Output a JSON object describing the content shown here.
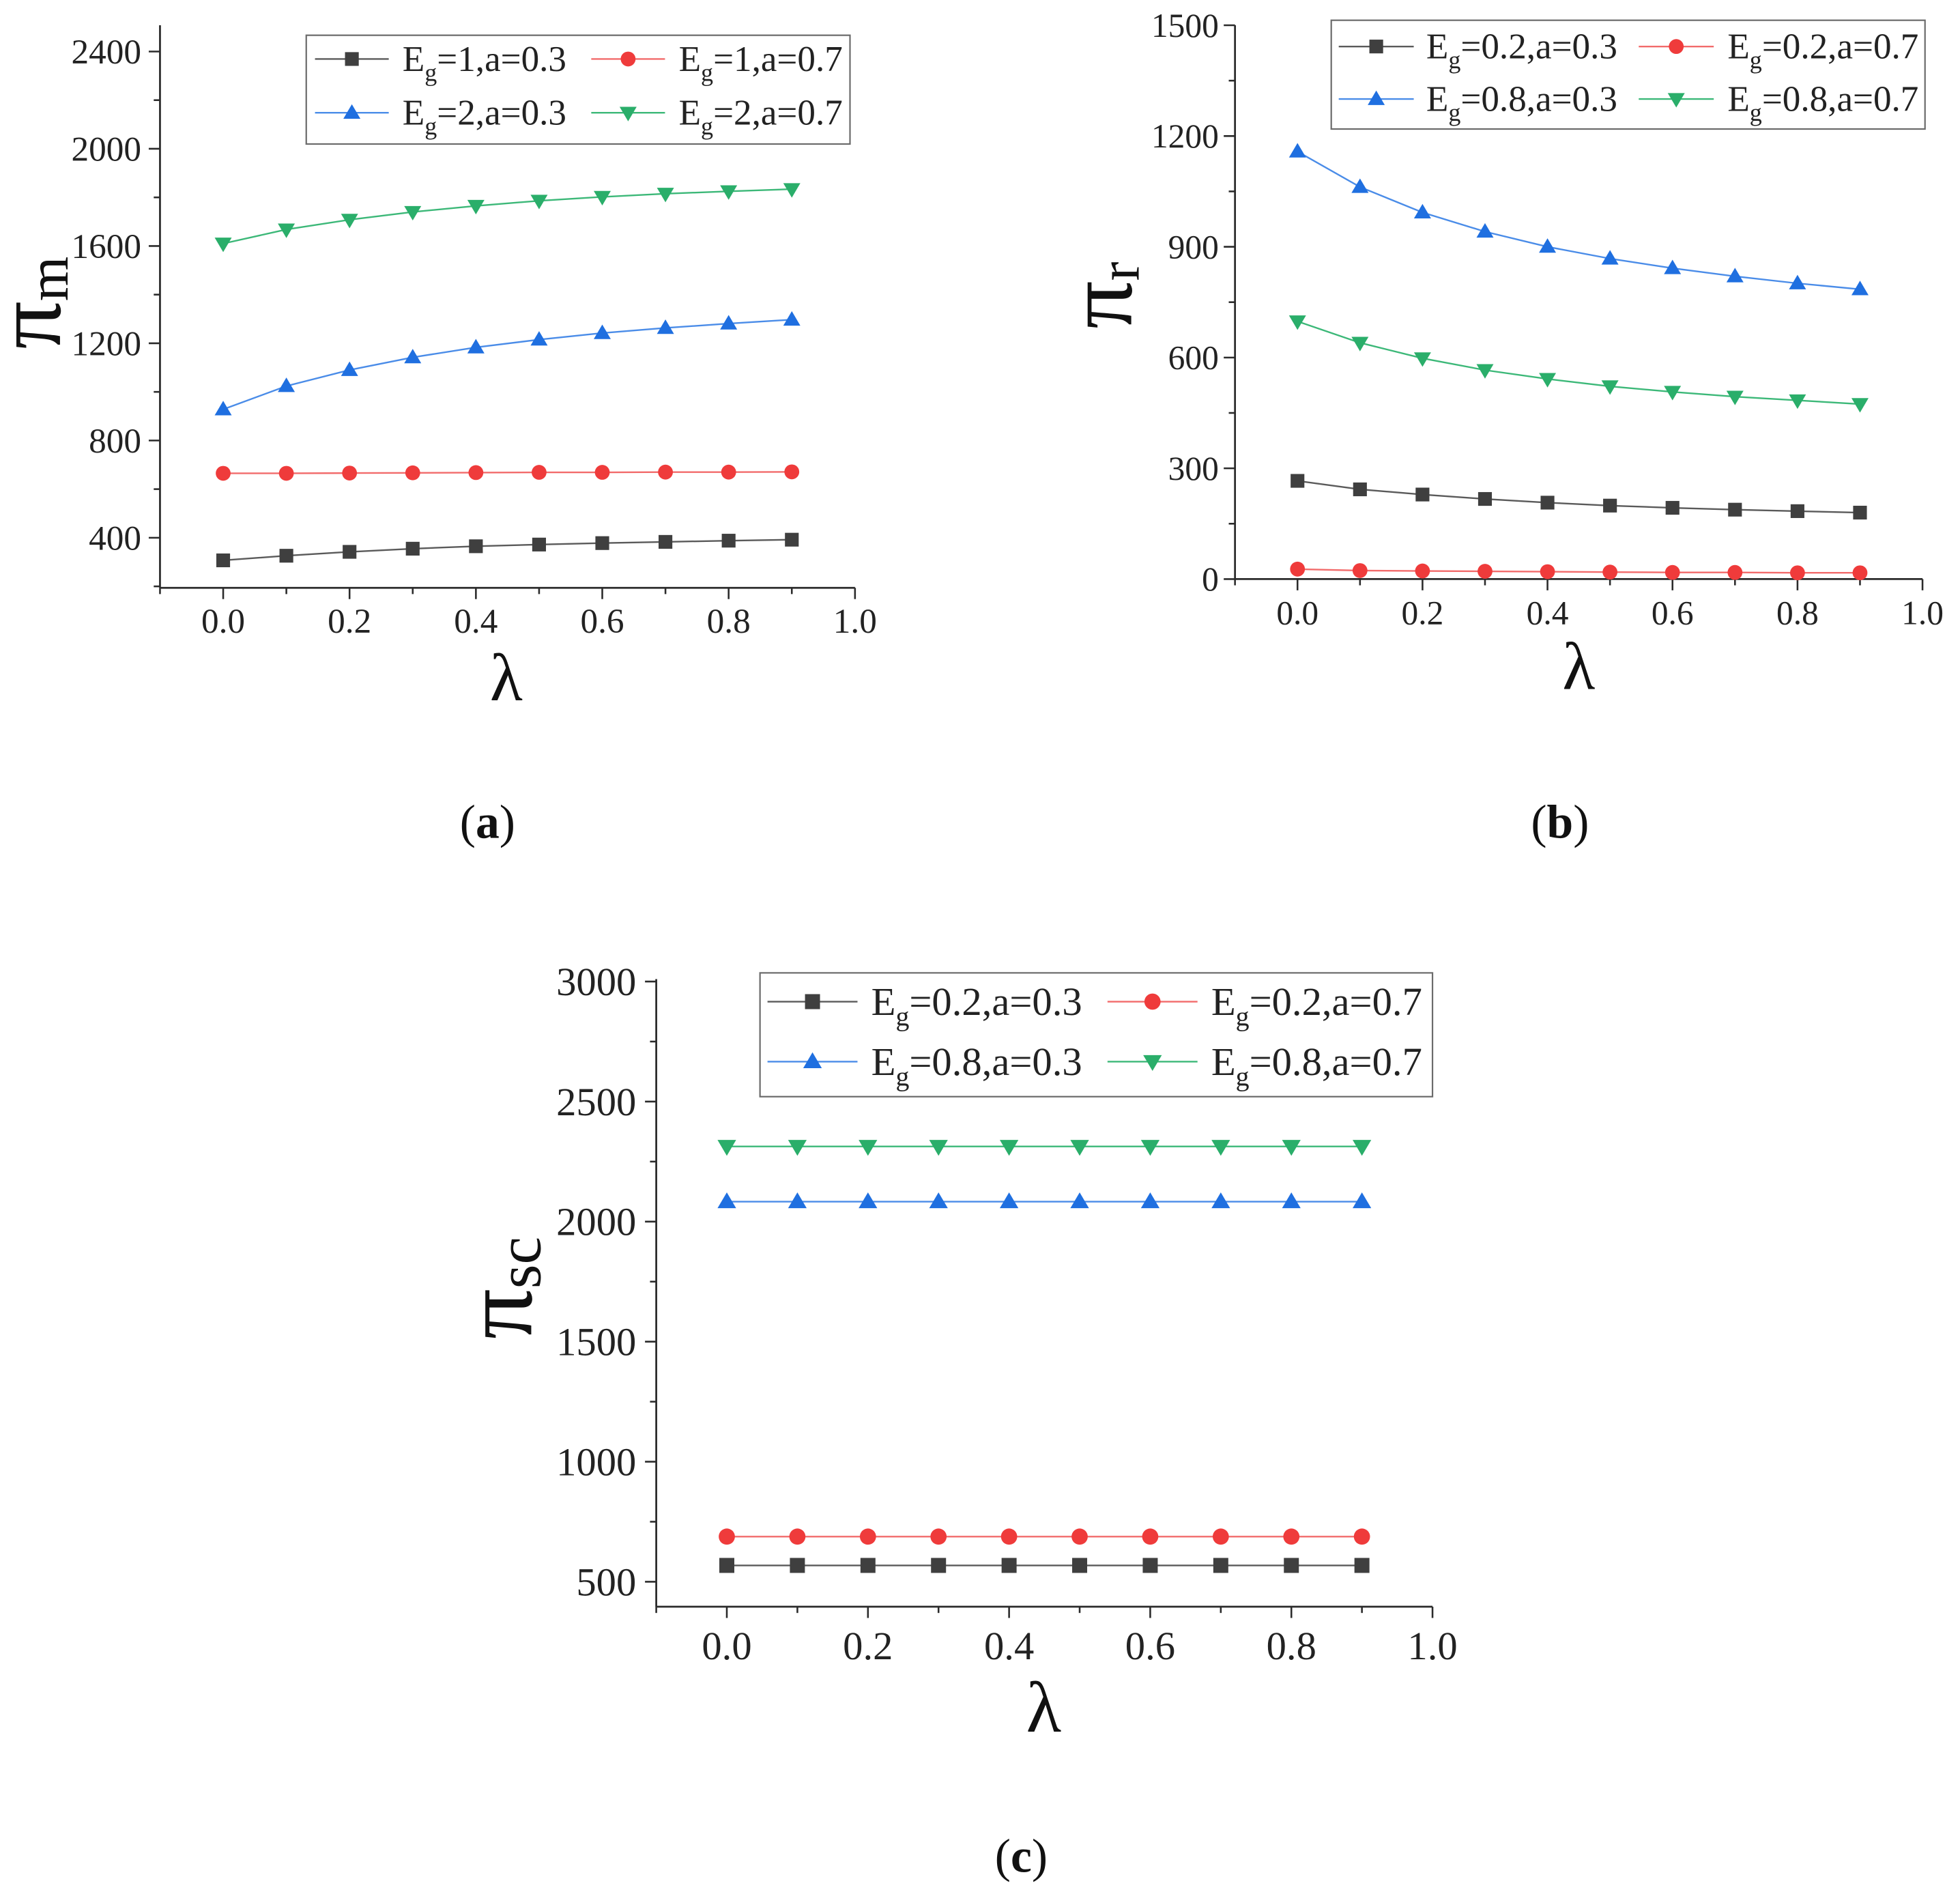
{
  "chart_data": [
    {
      "type": "line",
      "panel_label": {
        "open": "(",
        "letter": "a",
        "close": ")"
      },
      "xlabel": "λ",
      "ylabel": {
        "base": "π",
        "sub": "m"
      },
      "x": [
        0,
        0.1,
        0.2,
        0.3,
        0.4,
        0.5,
        0.6,
        0.7,
        0.8,
        0.9
      ],
      "xlim": [
        -0.1,
        1.0
      ],
      "ylim": [
        194,
        2508
      ],
      "xtick_values": [
        0,
        0.2,
        0.4,
        0.6,
        0.8,
        1.0
      ],
      "xtick_labels": [
        "0.0",
        "0.2",
        "0.4",
        "0.6",
        "0.8",
        "1.0"
      ],
      "ytick_values": [
        400,
        800,
        1200,
        1600,
        2000,
        2400
      ],
      "ytick_labels": [
        "400",
        "800",
        "1200",
        "1600",
        "2000",
        "2400"
      ],
      "legend": "top-right",
      "series": [
        {
          "name": {
            "base": "E",
            "sub": "g",
            "tail": "=1,a=0.3"
          },
          "color": "#3f3f3f",
          "line_color": "#5a5a5a",
          "marker": "square",
          "values": [
            307,
            326,
            342,
            355,
            365,
            372,
            378,
            383,
            388,
            392
          ]
        },
        {
          "name": {
            "base": "E",
            "sub": "g",
            "tail": "=1,a=0.7"
          },
          "color": "#ef3b3b",
          "line_color": "#f26b6b",
          "marker": "circle",
          "values": [
            665,
            665,
            666,
            667,
            668,
            669,
            669,
            670,
            670,
            671
          ]
        },
        {
          "name": {
            "base": "E",
            "sub": "g",
            "tail": "=2,a=0.3"
          },
          "color": "#1f6fe0",
          "line_color": "#4a8ce8",
          "marker": "triangle-up",
          "values": [
            928,
            1024,
            1090,
            1142,
            1183,
            1215,
            1242,
            1263,
            1281,
            1297
          ]
        },
        {
          "name": {
            "base": "E",
            "sub": "g",
            "tail": "=2,a=0.7"
          },
          "color": "#2aae6a",
          "line_color": "#3cb878",
          "marker": "triangle-down",
          "values": [
            1610,
            1668,
            1708,
            1740,
            1765,
            1786,
            1802,
            1815,
            1825,
            1834
          ]
        }
      ]
    },
    {
      "type": "line",
      "panel_label": {
        "open": "(",
        "letter": "b",
        "close": ")"
      },
      "xlabel": "λ",
      "ylabel": {
        "base": "π",
        "sub": "r"
      },
      "x": [
        0,
        0.1,
        0.2,
        0.3,
        0.4,
        0.5,
        0.6,
        0.7,
        0.8,
        0.9
      ],
      "xlim": [
        -0.1,
        1.0
      ],
      "ylim": [
        0,
        1500
      ],
      "xtick_values": [
        0,
        0.2,
        0.4,
        0.6,
        0.8,
        1.0
      ],
      "xtick_labels": [
        "0.0",
        "0.2",
        "0.4",
        "0.6",
        "0.8",
        "1.0"
      ],
      "ytick_values": [
        0,
        300,
        600,
        900,
        1200,
        1500
      ],
      "ytick_labels": [
        "0",
        "300",
        "600",
        "900",
        "1200",
        "1500"
      ],
      "legend": "top-right",
      "series": [
        {
          "name": {
            "base": "E",
            "sub": "g",
            "tail": "=0.2,a=0.3"
          },
          "color": "#3f3f3f",
          "line_color": "#5a5a5a",
          "marker": "square",
          "values": [
            266,
            243,
            229,
            217,
            207,
            199,
            193,
            188,
            184,
            180
          ]
        },
        {
          "name": {
            "base": "E",
            "sub": "g",
            "tail": "=0.2,a=0.7"
          },
          "color": "#ef3b3b",
          "line_color": "#f26b6b",
          "marker": "circle",
          "values": [
            27,
            23,
            22,
            21,
            20,
            19,
            18,
            18,
            17,
            17
          ]
        },
        {
          "name": {
            "base": "E",
            "sub": "g",
            "tail": "=0.8,a=0.3"
          },
          "color": "#1f6fe0",
          "line_color": "#4a8ce8",
          "marker": "triangle-up",
          "values": [
            1158,
            1062,
            993,
            941,
            900,
            868,
            842,
            820,
            801,
            785
          ]
        },
        {
          "name": {
            "base": "E",
            "sub": "g",
            "tail": "=0.8,a=0.7"
          },
          "color": "#2aae6a",
          "line_color": "#3cb878",
          "marker": "triangle-down",
          "values": [
            698,
            640,
            598,
            566,
            542,
            522,
            507,
            494,
            484,
            474
          ]
        }
      ]
    },
    {
      "type": "line",
      "panel_label": {
        "open": "(",
        "letter": "c",
        "close": ")"
      },
      "xlabel": "λ",
      "ylabel": {
        "base": "π",
        "sub": "sc"
      },
      "x": [
        0,
        0.1,
        0.2,
        0.3,
        0.4,
        0.5,
        0.6,
        0.7,
        0.8,
        0.9
      ],
      "xlim": [
        -0.1,
        1.0
      ],
      "ylim": [
        396,
        3010
      ],
      "xtick_values": [
        0,
        0.2,
        0.4,
        0.6,
        0.8,
        1.0
      ],
      "xtick_labels": [
        "0.0",
        "0.2",
        "0.4",
        "0.6",
        "0.8",
        "1.0"
      ],
      "ytick_values": [
        500,
        1000,
        1500,
        2000,
        2500,
        3000
      ],
      "ytick_labels": [
        "500",
        "1000",
        "1500",
        "2000",
        "2500",
        "3000"
      ],
      "legend": "top",
      "series": [
        {
          "name": {
            "base": "E",
            "sub": "g",
            "tail": "=0.2,a=0.3"
          },
          "color": "#3f3f3f",
          "line_color": "#5a5a5a",
          "marker": "square",
          "values": [
            568,
            568,
            568,
            568,
            568,
            568,
            568,
            568,
            568,
            568
          ]
        },
        {
          "name": {
            "base": "E",
            "sub": "g",
            "tail": "=0.2,a=0.7"
          },
          "color": "#ef3b3b",
          "line_color": "#f26b6b",
          "marker": "circle",
          "values": [
            688,
            688,
            688,
            688,
            688,
            688,
            688,
            688,
            688,
            688
          ]
        },
        {
          "name": {
            "base": "E",
            "sub": "g",
            "tail": "=0.8,a=0.3"
          },
          "color": "#1f6fe0",
          "line_color": "#4a8ce8",
          "marker": "triangle-up",
          "values": [
            2083,
            2083,
            2083,
            2083,
            2083,
            2083,
            2083,
            2083,
            2083,
            2083
          ]
        },
        {
          "name": {
            "base": "E",
            "sub": "g",
            "tail": "=0.8,a=0.7"
          },
          "color": "#2aae6a",
          "line_color": "#3cb878",
          "marker": "triangle-down",
          "values": [
            2313,
            2313,
            2313,
            2313,
            2313,
            2313,
            2313,
            2313,
            2313,
            2313
          ]
        }
      ]
    }
  ]
}
